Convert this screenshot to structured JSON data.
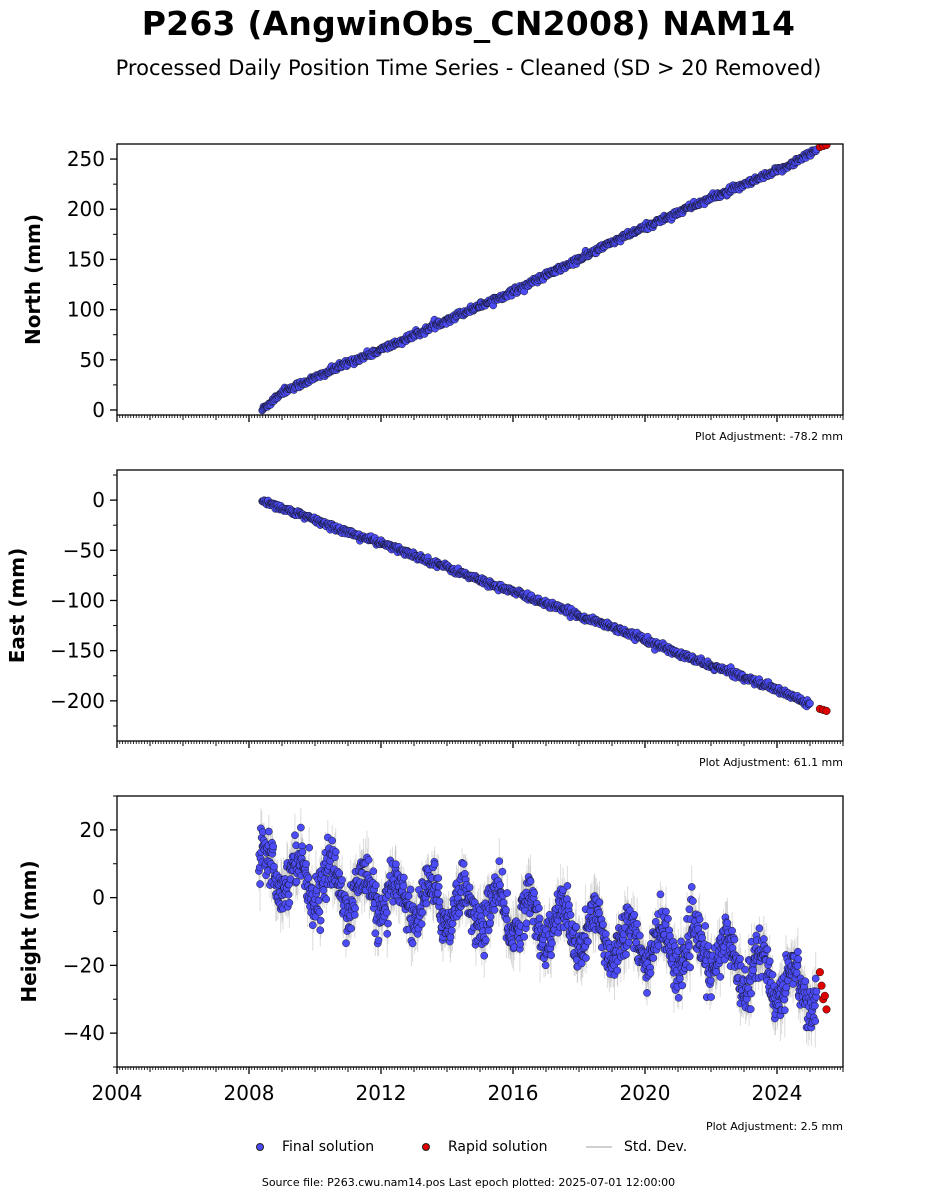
{
  "title": "P263 (AngwinObs_CN2008) NAM14",
  "subtitle": "Processed Daily Position Time Series - Cleaned (SD > 20 Removed)",
  "legend": {
    "final": "Final solution",
    "rapid": "Rapid solution",
    "std": "Std. Dev."
  },
  "source": "Source file: P263.cwu.nam14.pos  Last epoch plotted: 2025-07-01 12:00:00",
  "colors": {
    "final": "#4b4bf7",
    "rapid": "#e00000",
    "edge": "#111111",
    "std": "#9a9a9a"
  },
  "chart_data": [
    {
      "type": "scatter",
      "ylabel": "North (mm)",
      "adjustment": "Plot Adjustment: -78.2 mm",
      "xlim": [
        2004,
        2026
      ],
      "ylim": [
        -5,
        265
      ],
      "yticks": [
        0,
        50,
        100,
        150,
        200,
        250
      ],
      "ytick_labels": [
        "0",
        "50",
        "100",
        "150",
        "200",
        "250"
      ],
      "series": [
        {
          "name": "Final solution",
          "x": [
            2008.4,
            2009,
            2010,
            2011,
            2012,
            2013,
            2014,
            2015,
            2016,
            2017,
            2018,
            2019,
            2020,
            2021,
            2022,
            2023,
            2024,
            2025,
            2025.2
          ],
          "y": [
            0,
            18,
            32,
            47,
            60,
            74,
            90,
            104,
            118,
            134,
            150,
            167,
            182,
            197,
            211,
            224,
            238,
            255,
            260
          ]
        },
        {
          "name": "Rapid solution",
          "x": [
            2025.3,
            2025.4,
            2025.5
          ],
          "y": [
            262,
            263,
            264
          ]
        }
      ]
    },
    {
      "type": "scatter",
      "ylabel": "East (mm)",
      "adjustment": "Plot Adjustment: 61.1 mm",
      "xlim": [
        2004,
        2026
      ],
      "ylim": [
        -240,
        30
      ],
      "yticks": [
        0,
        -50,
        -100,
        -150,
        -200
      ],
      "ytick_labels": [
        "0",
        "−50",
        "−100",
        "−150",
        "−200"
      ],
      "series": [
        {
          "name": "Final solution",
          "x": [
            2008.4,
            2009,
            2010,
            2011,
            2012,
            2013,
            2014,
            2015,
            2016,
            2017,
            2018,
            2019,
            2020,
            2021,
            2022,
            2023,
            2024,
            2025
          ],
          "y": [
            0,
            -8,
            -20,
            -32,
            -43,
            -55,
            -67,
            -80,
            -91,
            -103,
            -115,
            -126,
            -139,
            -153,
            -165,
            -176,
            -189,
            -203
          ]
        },
        {
          "name": "Rapid solution",
          "x": [
            2025.3,
            2025.4,
            2025.5
          ],
          "y": [
            -208,
            -209,
            -210
          ]
        }
      ]
    },
    {
      "type": "scatter",
      "ylabel": "Height (mm)",
      "adjustment": "Plot Adjustment: 2.5 mm",
      "xlim": [
        2004,
        2026
      ],
      "ylim": [
        -50,
        30
      ],
      "yticks": [
        20,
        0,
        -20,
        -40
      ],
      "ytick_labels": [
        "20",
        "0",
        "−20",
        "−40"
      ],
      "xticks": [
        2004,
        2008,
        2012,
        2016,
        2020,
        2024
      ],
      "xtick_labels": [
        "2004",
        "2008",
        "2012",
        "2016",
        "2020",
        "2024"
      ],
      "series": [
        {
          "name": "Final solution",
          "trend_x": [
            2008.3,
            2010,
            2012,
            2014,
            2016,
            2018,
            2020,
            2022,
            2024,
            2025.2
          ],
          "trend_y": [
            10,
            5,
            0,
            -2,
            -5,
            -10,
            -14,
            -16,
            -24,
            -28
          ],
          "seasonal_amplitude_mm": 6,
          "scatter_sd_mm": 3.5
        },
        {
          "name": "Rapid solution",
          "x": [
            2025.3,
            2025.35,
            2025.4,
            2025.45,
            2025.5
          ],
          "y": [
            -22,
            -26,
            -30,
            -29,
            -33
          ]
        }
      ]
    }
  ]
}
